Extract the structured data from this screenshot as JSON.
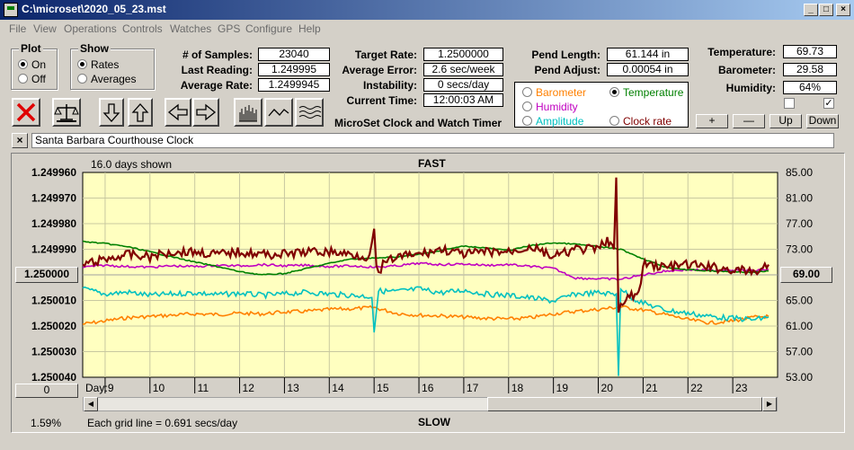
{
  "window": {
    "title": "C:\\microset\\2020_05_23.mst",
    "controls": [
      "_",
      "□",
      "×"
    ]
  },
  "menu": [
    "File",
    "View",
    "Operations",
    "Controls",
    "Watches",
    "GPS",
    "Configure",
    "Help"
  ],
  "plot_group": {
    "title": "Plot",
    "on": "On",
    "off": "Off",
    "selected": "On"
  },
  "show_group": {
    "title": "Show",
    "rates": "Rates",
    "averages": "Averages",
    "selected": "Rates"
  },
  "stats": {
    "samples_label": "# of Samples:",
    "samples_value": "23040",
    "last_label": "Last Reading:",
    "last_value": "1.249995",
    "avg_rate_label": "Average Rate:",
    "avg_rate_value": "1.2499945",
    "target_label": "Target Rate:",
    "target_value": "1.2500000",
    "avg_err_label": "Average Error:",
    "avg_err_value": "2.6 sec/week",
    "instab_label": "Instability:",
    "instab_value": "0 secs/day",
    "time_label": "Current Time:",
    "time_value": "12:00:03 AM",
    "app_name": "MicroSet Clock and Watch Timer",
    "pend_len_label": "Pend Length:",
    "pend_len_value": "61.144 in",
    "pend_adj_label": "Pend Adjust:",
    "pend_adj_value": "0.00054 in",
    "temp_label": "Temperature:",
    "temp_value": "69.73",
    "baro_label": "Barometer:",
    "baro_value": "29.58",
    "hum_label": "Humidity:",
    "hum_value": "64%"
  },
  "sensor_select": {
    "barometer": "Barometer",
    "temperature": "Temperature",
    "humidity": "Humidity",
    "amplitude": "Amplitude",
    "clock_rate": "Clock rate",
    "selected": "Temperature",
    "colors": {
      "barometer": "#ff8000",
      "temperature": "#008000",
      "humidity": "#c000c0",
      "amplitude": "#00c0c0",
      "clock_rate": "#800000"
    }
  },
  "small_buttons": {
    "plus": "+",
    "minus": "—",
    "up": "Up",
    "down": "Down"
  },
  "checkbox_right_checked": "✓",
  "clock_name": "Santa Barbara Courthouse Clock",
  "close_x": "×",
  "icons": [
    "cancel-x-icon",
    "balance-scale-icon",
    "arrow-down-icon",
    "arrow-up-icon",
    "arrow-left-icon",
    "arrow-right-icon",
    "bar-plot-icon",
    "wave-plot-icon",
    "dense-wave-plot-icon"
  ],
  "chart_header": {
    "days_shown": "16.0 days shown",
    "top_label": "FAST",
    "bottom_label": "SLOW"
  },
  "chart_footer": {
    "grid_note": "Each grid line = 0.691 secs/day",
    "percent": "1.59%",
    "day_label": "Day:",
    "left_button_value": "1.250000",
    "bottom_left_button": "0",
    "right_button_value": "69.00"
  },
  "chart_data": {
    "type": "line",
    "x_label": "Day:",
    "x_ticks": [
      "9",
      "10",
      "11",
      "12",
      "13",
      "14",
      "15",
      "16",
      "17",
      "18",
      "19",
      "20",
      "21",
      "22",
      "23"
    ],
    "xlim": [
      8.5,
      24
    ],
    "y_left_ticks": [
      "1.249960",
      "1.249970",
      "1.249980",
      "1.249990",
      "1.250000",
      "1.250010",
      "1.250020",
      "1.250030",
      "1.250040"
    ],
    "y_left_range": [
      1.24996,
      1.25004
    ],
    "y_right_ticks": [
      "85.00",
      "81.00",
      "77.00",
      "73.00",
      "69.00",
      "65.00",
      "61.00",
      "57.00",
      "53.00"
    ],
    "y_right_range": [
      85,
      53
    ],
    "background": "#ffffc0",
    "series": [
      {
        "name": "Clock rate",
        "color": "#800000",
        "axis": "left",
        "x": [
          8.5,
          9.0,
          9.5,
          10.0,
          10.5,
          11.0,
          11.5,
          12.0,
          12.5,
          13.0,
          13.5,
          14.0,
          14.5,
          14.9,
          15.0,
          15.05,
          15.1,
          15.2,
          15.5,
          16.0,
          16.5,
          17.0,
          17.5,
          18.0,
          18.5,
          19.0,
          19.5,
          20.0,
          20.2,
          20.35,
          20.4,
          20.45,
          20.5,
          20.7,
          20.9,
          21.0,
          21.2,
          21.5,
          22.0,
          22.5,
          23.0,
          23.5,
          23.8
        ],
        "y": [
          1.249996,
          1.249994,
          1.249992,
          1.249993,
          1.249991,
          1.249991,
          1.249992,
          1.249991,
          1.249992,
          1.249992,
          1.249991,
          1.249991,
          1.249992,
          1.249993,
          1.249982,
          1.249998,
          1.25,
          1.249996,
          1.249993,
          1.249992,
          1.24999,
          1.249992,
          1.249991,
          1.249991,
          1.249989,
          1.249993,
          1.24999,
          1.24999,
          1.249986,
          1.24999,
          1.249962,
          1.250015,
          1.250013,
          1.250008,
          1.250008,
          1.249996,
          1.249996,
          1.249997,
          1.249996,
          1.249997,
          1.249998,
          1.249999,
          1.249996
        ]
      },
      {
        "name": "Temperature",
        "color": "#008000",
        "axis": "right",
        "x": [
          8.5,
          9.0,
          9.5,
          10.0,
          10.5,
          11.0,
          11.5,
          12.0,
          12.5,
          13.0,
          13.5,
          14.0,
          14.5,
          15.0,
          15.5,
          16.0,
          16.5,
          17.0,
          17.5,
          18.0,
          18.5,
          19.0,
          19.5,
          20.0,
          20.5,
          21.0,
          21.5,
          22.0,
          22.5,
          23.0,
          23.5,
          23.8
        ],
        "y": [
          74.2,
          73.9,
          73.4,
          72.6,
          71.8,
          71.0,
          70.3,
          69.5,
          69.0,
          69.2,
          70.0,
          70.8,
          71.5,
          71.6,
          71.8,
          72.2,
          72.8,
          73.5,
          73.2,
          72.8,
          73.6,
          74.0,
          73.8,
          73.4,
          73.0,
          71.5,
          70.2,
          69.8,
          69.6,
          69.5,
          69.4,
          69.6
        ]
      },
      {
        "name": "Humidity",
        "color": "#c000c0",
        "axis": "right",
        "x": [
          8.5,
          9.0,
          9.5,
          10.0,
          10.5,
          11.0,
          11.5,
          12.0,
          12.5,
          13.0,
          13.5,
          14.0,
          14.5,
          15.0,
          15.5,
          16.0,
          16.5,
          17.0,
          17.5,
          18.0,
          18.5,
          19.0,
          19.5,
          20.0,
          20.5,
          21.0,
          21.5,
          22.0,
          22.5,
          23.0,
          23.5,
          23.8
        ],
        "y": [
          70.2,
          70.5,
          70.3,
          70.2,
          70.4,
          70.3,
          70.5,
          70.4,
          70.6,
          70.4,
          70.5,
          70.3,
          70.4,
          70.2,
          70.4,
          70.8,
          70.6,
          70.7,
          70.5,
          70.6,
          70.3,
          70.0,
          68.5,
          68.4,
          68.3,
          69.0,
          69.6,
          69.8,
          69.7,
          69.8,
          69.6,
          69.9
        ]
      },
      {
        "name": "Amplitude",
        "color": "#00c0c0",
        "axis": "right",
        "x": [
          8.5,
          9.0,
          9.5,
          10.0,
          10.5,
          11.0,
          11.5,
          12.0,
          12.5,
          13.0,
          13.5,
          14.0,
          14.5,
          14.95,
          15.0,
          15.1,
          15.5,
          16.0,
          16.5,
          17.0,
          17.5,
          18.0,
          18.5,
          19.0,
          19.5,
          20.0,
          20.4,
          20.45,
          20.5,
          20.7,
          21.0,
          21.5,
          22.0,
          22.5,
          23.0,
          23.5,
          23.8
        ],
        "y": [
          66.8,
          66.0,
          66.3,
          65.8,
          66.0,
          66.2,
          65.9,
          66.1,
          65.8,
          66.0,
          66.3,
          66.0,
          65.8,
          65.6,
          60.0,
          66.5,
          66.4,
          66.8,
          66.2,
          66.6,
          66.0,
          65.8,
          65.4,
          64.9,
          66.0,
          66.2,
          66.0,
          53.2,
          67.0,
          65.6,
          64.6,
          63.5,
          63.0,
          62.5,
          62.2,
          62.0,
          62.4
        ]
      },
      {
        "name": "Barometer",
        "color": "#ff8000",
        "axis": "right",
        "x": [
          8.5,
          9.0,
          9.5,
          10.0,
          10.5,
          11.0,
          11.5,
          12.0,
          12.5,
          13.0,
          13.5,
          14.0,
          14.5,
          15.0,
          15.5,
          16.0,
          16.5,
          17.0,
          17.5,
          18.0,
          18.5,
          19.0,
          19.5,
          20.0,
          20.5,
          21.0,
          21.5,
          22.0,
          22.5,
          23.0,
          23.5,
          23.8
        ],
        "y": [
          61.3,
          61.8,
          62.3,
          62.5,
          62.7,
          62.9,
          62.8,
          63.0,
          62.9,
          63.2,
          63.3,
          63.6,
          63.7,
          63.9,
          63.0,
          62.7,
          62.6,
          62.4,
          62.2,
          62.1,
          62.3,
          62.9,
          63.3,
          63.6,
          64.0,
          63.5,
          62.8,
          62.0,
          61.5,
          61.8,
          62.4,
          62.5
        ]
      }
    ]
  }
}
